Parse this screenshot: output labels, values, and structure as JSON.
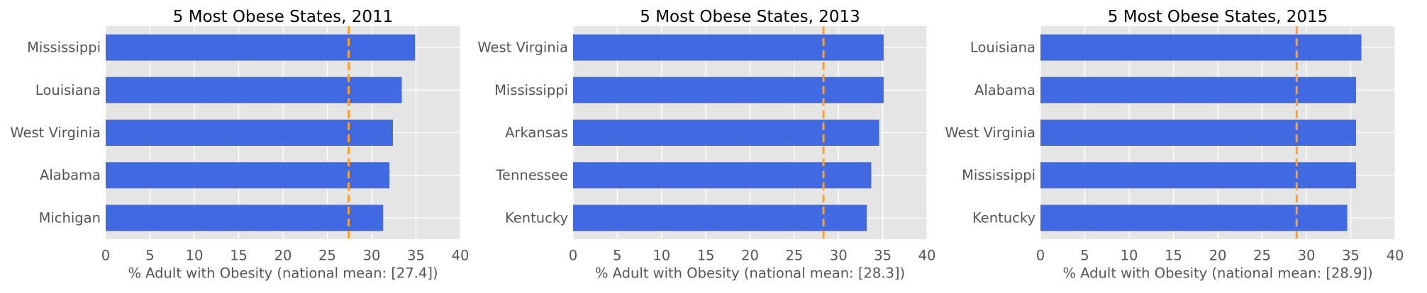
{
  "chart_data": [
    {
      "type": "bar",
      "orientation": "horizontal",
      "title": "5 Most Obese States, 2011",
      "xlabel": "% Adult with Obesity (national mean: [27.4])",
      "ylabel": "",
      "categories": [
        "Mississippi",
        "Louisiana",
        "West Virginia",
        "Alabama",
        "Michigan"
      ],
      "values": [
        34.9,
        33.4,
        32.4,
        32.0,
        31.3
      ],
      "xlim": [
        0,
        40
      ],
      "xticks": [
        0,
        5,
        10,
        15,
        20,
        25,
        30,
        35,
        40
      ],
      "reference_line": {
        "value": 27.4,
        "style": "dashed"
      },
      "grid": true
    },
    {
      "type": "bar",
      "orientation": "horizontal",
      "title": "5 Most Obese States, 2013",
      "xlabel": "% Adult with Obesity (national mean: [28.3])",
      "ylabel": "",
      "categories": [
        "West Virginia",
        "Mississippi",
        "Arkansas",
        "Tennessee",
        "Kentucky"
      ],
      "values": [
        35.1,
        35.1,
        34.6,
        33.7,
        33.2
      ],
      "xlim": [
        0,
        40
      ],
      "xticks": [
        0,
        5,
        10,
        15,
        20,
        25,
        30,
        35,
        40
      ],
      "reference_line": {
        "value": 28.3,
        "style": "dashed"
      },
      "grid": true
    },
    {
      "type": "bar",
      "orientation": "horizontal",
      "title": "5 Most Obese States, 2015",
      "xlabel": "% Adult with Obesity (national mean: [28.9])",
      "ylabel": "",
      "categories": [
        "Louisiana",
        "Alabama",
        "West Virginia",
        "Mississippi",
        "Kentucky"
      ],
      "values": [
        36.2,
        35.6,
        35.6,
        35.6,
        34.6
      ],
      "xlim": [
        0,
        40
      ],
      "xticks": [
        0,
        5,
        10,
        15,
        20,
        25,
        30,
        35,
        40
      ],
      "reference_line": {
        "value": 28.9,
        "style": "dashed"
      },
      "grid": true
    }
  ],
  "colors": {
    "bar": "#4169e1",
    "reference_line": "#f9a233",
    "plot_background": "#e5e5e5",
    "grid": "#ffffff",
    "tick_label": "#555555",
    "title": "#000000"
  }
}
